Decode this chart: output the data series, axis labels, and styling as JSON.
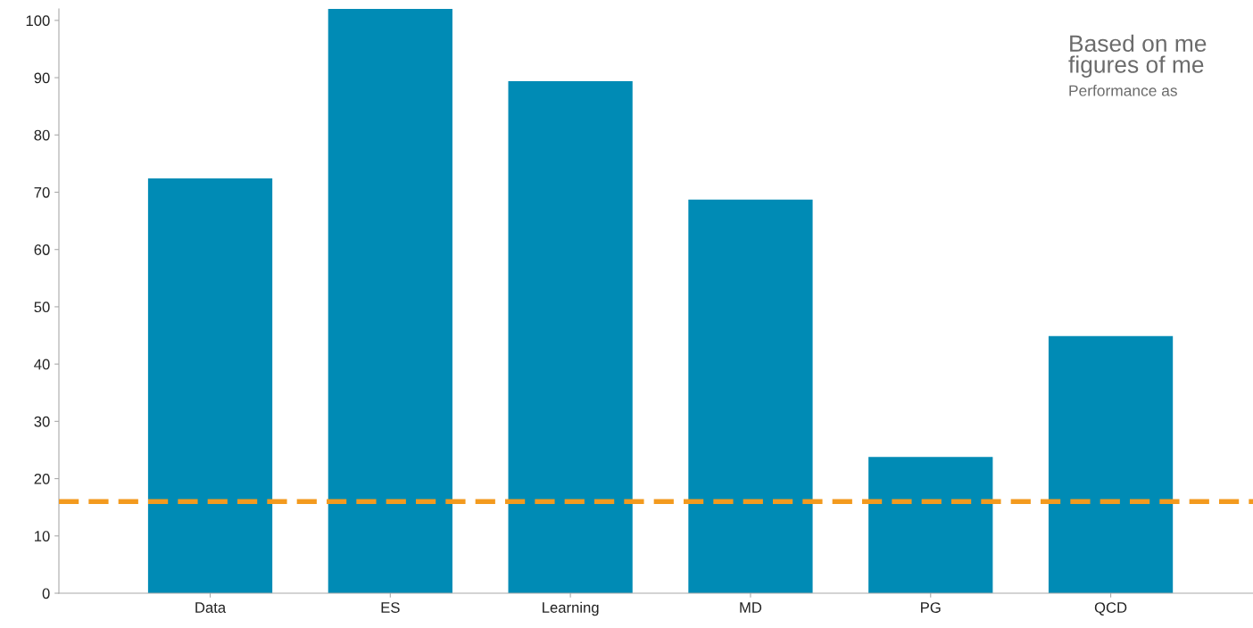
{
  "chart_data": {
    "type": "bar",
    "categories": [
      "Data",
      "ES",
      "Learning",
      "MD",
      "PG",
      "QCD"
    ],
    "values": [
      72.4,
      102,
      89.4,
      68.7,
      23.8,
      44.9
    ],
    "color": "#008bb5",
    "ylim": [
      0,
      102
    ],
    "yticks": [
      0,
      10,
      20,
      30,
      40,
      50,
      60,
      70,
      80,
      90,
      100
    ],
    "grid": false,
    "legend": false,
    "ref_lines": [
      {
        "axis": "y",
        "value": 16,
        "color": "#f39a1e",
        "line_style": "dashed"
      }
    ],
    "annotations": [
      "Based on me\nfigures of me",
      "Performance as"
    ]
  }
}
